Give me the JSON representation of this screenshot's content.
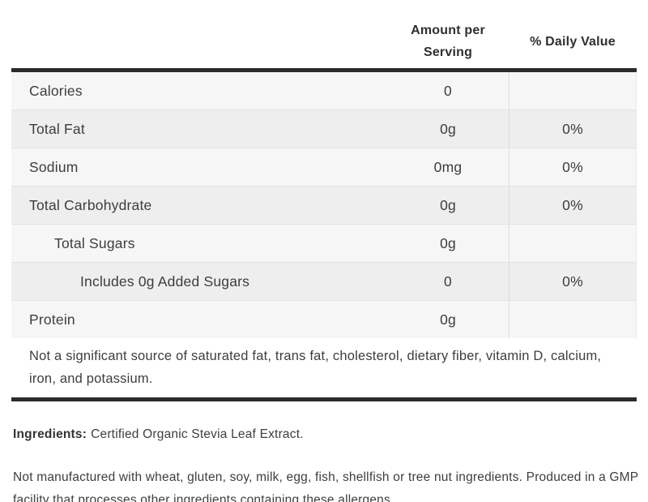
{
  "table": {
    "header": {
      "amount": "Amount per Serving",
      "daily": "% Daily Value"
    },
    "rows": [
      {
        "label": "Calories",
        "amount": "0",
        "daily": ""
      },
      {
        "label": "Total Fat",
        "amount": "0g",
        "daily": "0%"
      },
      {
        "label": "Sodium",
        "amount": "0mg",
        "daily": "0%"
      },
      {
        "label": "Total Carbohydrate",
        "amount": "0g",
        "daily": "0%"
      },
      {
        "label": "Total Sugars",
        "amount": "0g",
        "daily": ""
      },
      {
        "label": "Includes 0g Added Sugars",
        "amount": "0",
        "daily": "0%"
      },
      {
        "label": "Protein",
        "amount": "0g",
        "daily": ""
      }
    ],
    "footnote": "Not a significant source of saturated fat, trans fat, cholesterol, dietary fiber, vitamin D, calcium, iron, and potassium."
  },
  "ingredients": {
    "label": "Ingredients:",
    "text": "Certified Organic Stevia Leaf Extract."
  },
  "allergen_note": "Not manufactured with wheat, gluten, soy, milk, egg, fish, shellfish or tree nut ingredients. Produced in a GMP facility that processes other ingredients containing these allergens.",
  "colors": {
    "divider_bar": "#2b2b2b",
    "row_light": "#f6f6f6",
    "row_dark": "#eeeeee",
    "row_border": "#e3e3e3",
    "column_divider": "#dcdcdc",
    "text": "#3d3d3d"
  }
}
